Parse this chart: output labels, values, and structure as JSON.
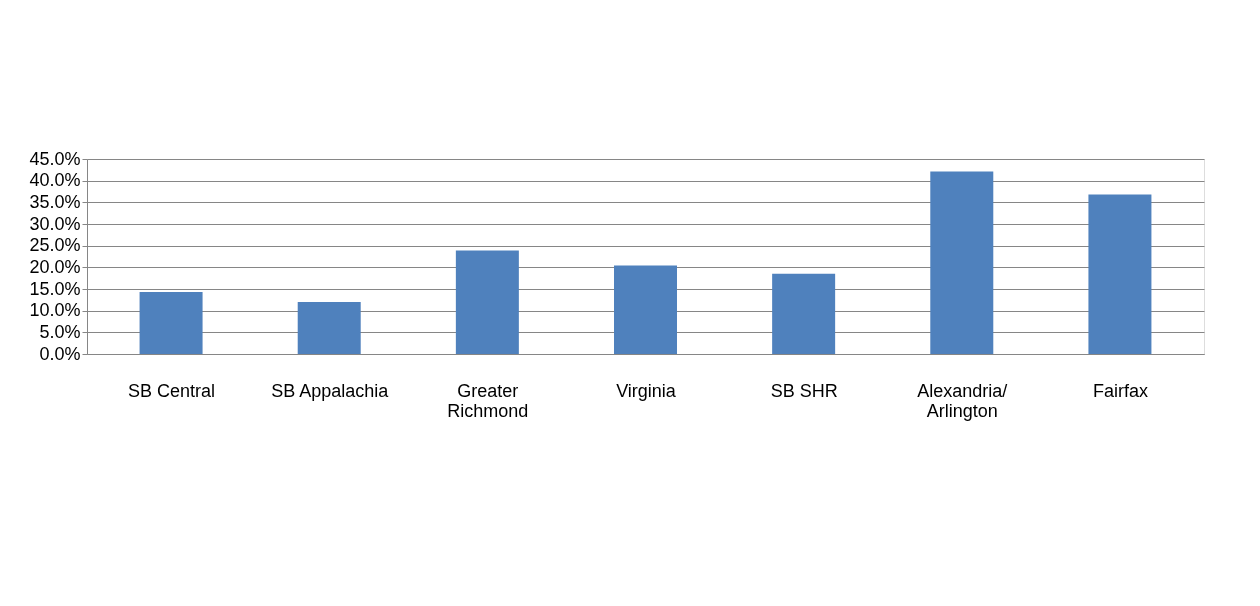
{
  "chart_data": {
    "type": "bar",
    "categories": [
      "SB Central",
      "SB Appalachia",
      "Greater\nRichmond",
      "Virginia",
      "SB SHR",
      "Alexandria/\nArlington",
      "Fairfax"
    ],
    "values": [
      14.3,
      12.0,
      23.9,
      20.4,
      18.5,
      42.1,
      36.8
    ],
    "color": "#4f81bd",
    "ylim": [
      0,
      45
    ],
    "yticks": [
      {
        "value": 0,
        "label": "0.0%"
      },
      {
        "value": 5,
        "label": "5.0%"
      },
      {
        "value": 10,
        "label": "10.0%"
      },
      {
        "value": 15,
        "label": "15.0%"
      },
      {
        "value": 20,
        "label": "20.0%"
      },
      {
        "value": 25,
        "label": "25.0%"
      },
      {
        "value": 30,
        "label": "30.0%"
      },
      {
        "value": 35,
        "label": "35.0%"
      },
      {
        "value": 40,
        "label": "40.0%"
      },
      {
        "value": 45,
        "label": "45.0%"
      }
    ],
    "grid": "y"
  }
}
